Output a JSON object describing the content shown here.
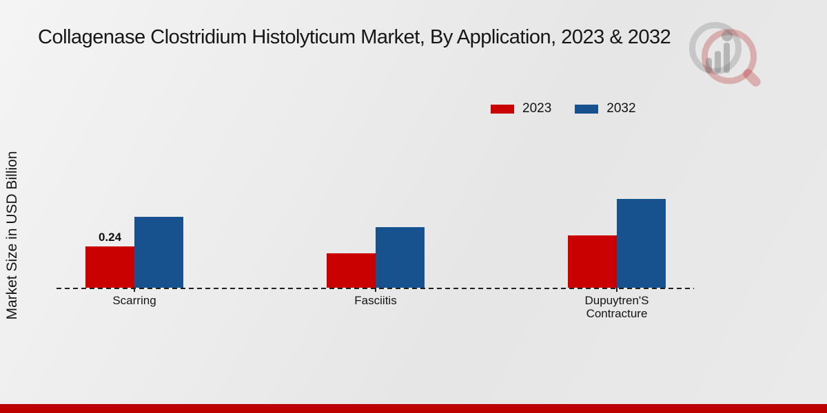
{
  "chart_data": {
    "type": "bar",
    "title": "Collagenase Clostridium Histolyticum Market, By Application, 2023 & 2032",
    "ylabel": "Market Size in USD Billion",
    "xlabel": "",
    "categories": [
      "Scarring",
      "Fasciitis",
      "Dupuytren'S Contracture"
    ],
    "series": [
      {
        "name": "2023",
        "color": "#c90101",
        "values": [
          0.24,
          0.2,
          0.3
        ]
      },
      {
        "name": "2032",
        "color": "#17528e",
        "values": [
          0.41,
          0.35,
          0.51
        ]
      }
    ],
    "data_labels": [
      {
        "series": "2023",
        "category": "Scarring",
        "text": "0.24"
      }
    ],
    "ylim": [
      0,
      0.6
    ],
    "grid": false,
    "legend_position": "top-right",
    "baseline_style": "dashed",
    "unit": "USD Billion"
  },
  "page": {
    "footer_accent_color": "#bd0000",
    "watermark": "magnifier-bar-chart-logo"
  }
}
